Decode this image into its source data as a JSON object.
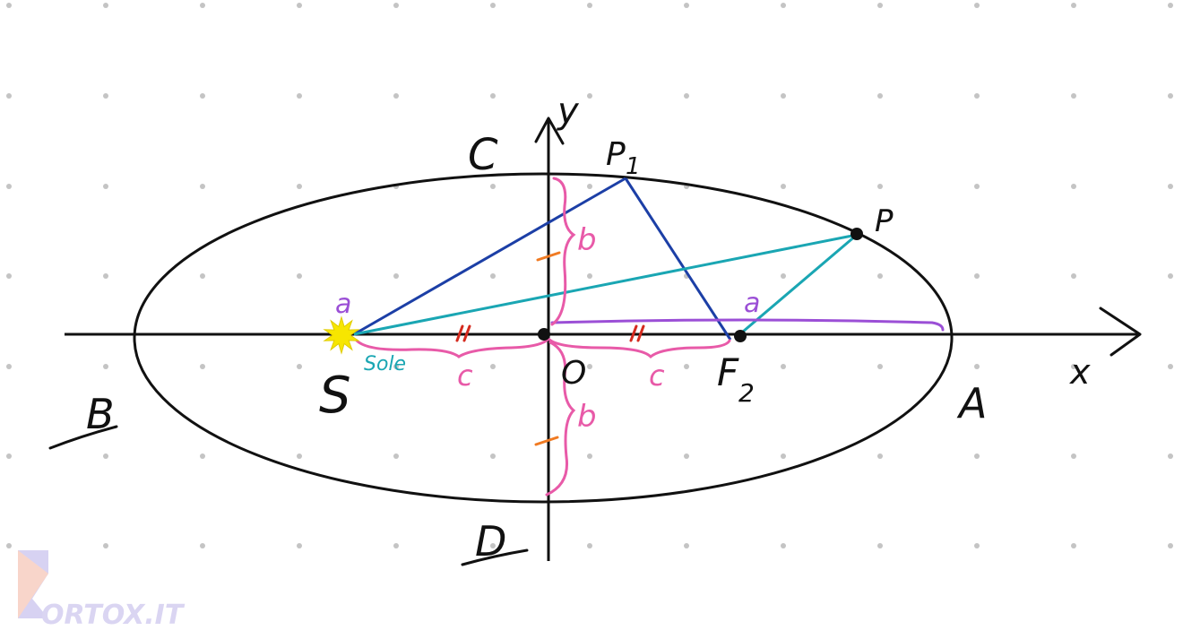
{
  "diagram": {
    "labels": {
      "y_axis": "y",
      "x_axis": "x",
      "vertex_c": "C",
      "vertex_d": "D",
      "vertex_a": "A",
      "vertex_b": "B",
      "focus_s": "S",
      "sun": "Sole",
      "center": "O",
      "focus_f2": "F",
      "focus_f2_sub": "2",
      "point_p1": "P",
      "point_p1_sub": "1",
      "point_p": "P",
      "semi_major": "a",
      "semi_major_top": "a",
      "semi_minor_upper": "b",
      "semi_minor_lower": "b",
      "focal_left": "c",
      "focal_right": "c"
    },
    "watermark": "ORTOX.IT",
    "colors": {
      "ellipse": "#111111",
      "axes": "#111111",
      "p1_lines": "#1c3fa6",
      "p_lines": "#1aa6b3",
      "semi_major": "#9b4fd6",
      "braces": "#e85aa8",
      "ticks_red": "#d42a1e",
      "ticks_orange": "#f07a22",
      "sun": "#f7e600",
      "sun_label": "#1aa6b3",
      "grid_dots": "#c4c4c4"
    }
  }
}
